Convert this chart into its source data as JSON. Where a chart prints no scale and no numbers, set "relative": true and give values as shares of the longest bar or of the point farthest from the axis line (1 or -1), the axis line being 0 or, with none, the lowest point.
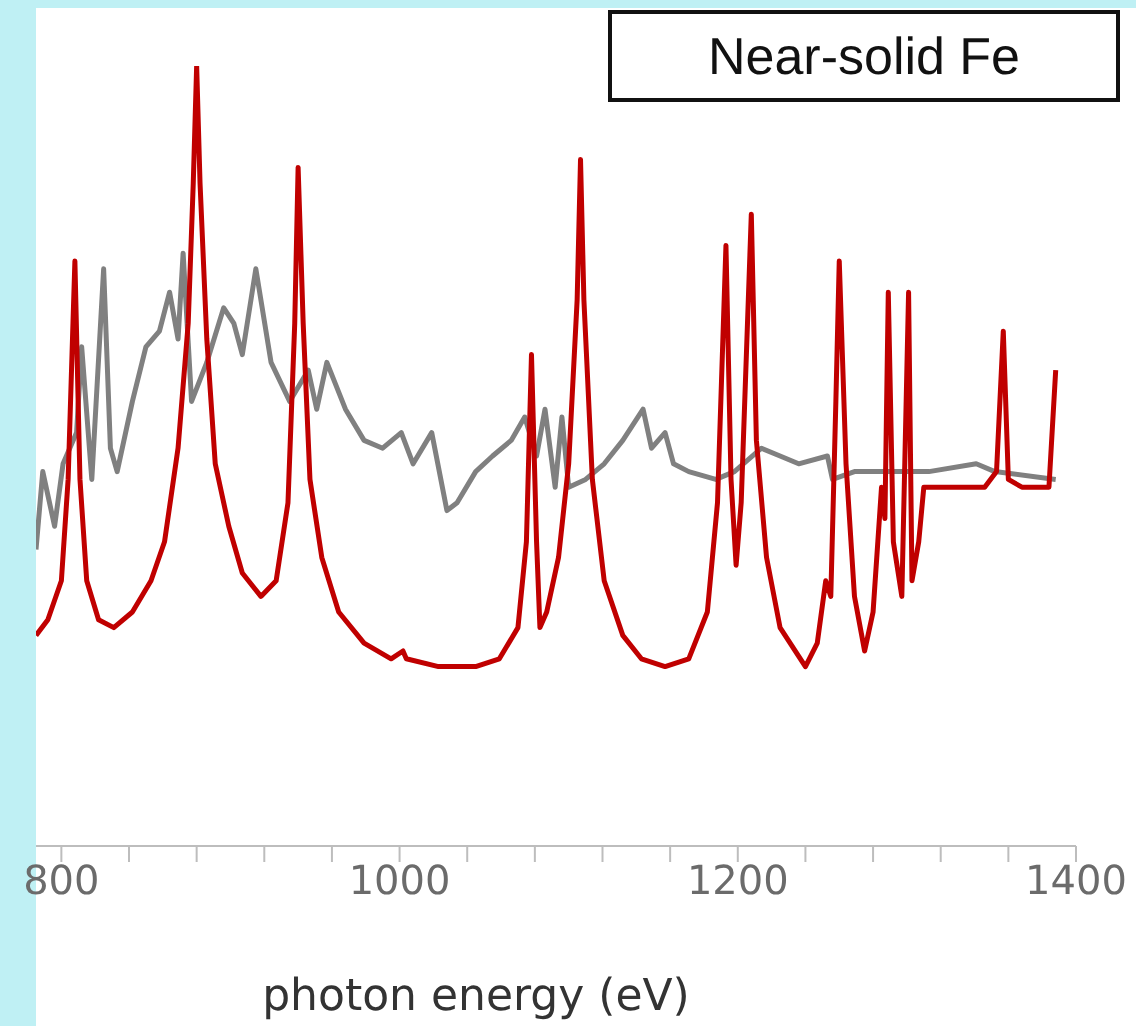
{
  "chart_data": {
    "type": "line",
    "relative": true,
    "xlabel": "photon energy (eV)",
    "annotations": [
      "Near-solid Fe"
    ],
    "xlim": [
      785,
      1400
    ],
    "xticks": [
      800,
      {
        "value": 840,
        "label": null
      },
      {
        "value": 880,
        "label": null
      },
      {
        "value": 920,
        "label": null
      },
      {
        "value": 960,
        "label": null
      },
      1000,
      {
        "value": 1040,
        "label": null
      },
      {
        "value": 1080,
        "label": null
      },
      {
        "value": 1120,
        "label": null
      },
      {
        "value": 1160,
        "label": null
      },
      1200,
      {
        "value": 1240,
        "label": null
      },
      {
        "value": 1280,
        "label": null
      },
      {
        "value": 1320,
        "label": null
      },
      {
        "value": 1360,
        "label": null
      },
      1400
    ],
    "grid": false,
    "legend": false,
    "marker": "none",
    "line_style": "solid",
    "series": [
      {
        "color": "#808080",
        "x": [
          785,
          789,
          796,
          801,
          809,
          812,
          818,
          825,
          829,
          833,
          842,
          850,
          858,
          864,
          869,
          872,
          877,
          886,
          896,
          902,
          907,
          915,
          924,
          935,
          946,
          951,
          957,
          968,
          979,
          990,
          1001,
          1008,
          1019,
          1028,
          1034,
          1045,
          1055,
          1066,
          1074,
          1081,
          1086,
          1092,
          1096,
          1100,
          1110,
          1121,
          1132,
          1144,
          1149,
          1157,
          1162,
          1171,
          1187,
          1198,
          1214,
          1225,
          1236,
          1253,
          1256,
          1269,
          1291,
          1313,
          1341,
          1352,
          1388
        ],
        "values": [
          0.38,
          0.48,
          0.41,
          0.49,
          0.53,
          0.64,
          0.47,
          0.74,
          0.51,
          0.48,
          0.57,
          0.64,
          0.66,
          0.71,
          0.65,
          0.76,
          0.57,
          0.62,
          0.69,
          0.67,
          0.63,
          0.74,
          0.62,
          0.57,
          0.61,
          0.56,
          0.62,
          0.56,
          0.52,
          0.51,
          0.53,
          0.49,
          0.53,
          0.43,
          0.44,
          0.48,
          0.5,
          0.52,
          0.55,
          0.5,
          0.56,
          0.46,
          0.55,
          0.46,
          0.47,
          0.49,
          0.52,
          0.56,
          0.51,
          0.53,
          0.49,
          0.48,
          0.47,
          0.48,
          0.51,
          0.5,
          0.49,
          0.5,
          0.47,
          0.48,
          0.48,
          0.48,
          0.49,
          0.48,
          0.47
        ]
      },
      {
        "color": "#c00000",
        "x": [
          785,
          792,
          800,
          804,
          808,
          811,
          815,
          822,
          831,
          842,
          853,
          861,
          869,
          875,
          878,
          880,
          882,
          886,
          891,
          899,
          907,
          918,
          927,
          934,
          938,
          940,
          943,
          947,
          954,
          964,
          979,
          995,
          1002,
          1004,
          1023,
          1045,
          1059,
          1070,
          1075,
          1078,
          1081,
          1083,
          1087,
          1094,
          1100,
          1105,
          1107,
          1109,
          1114,
          1121,
          1132,
          1143,
          1157,
          1171,
          1182,
          1188,
          1193,
          1196,
          1199,
          1202,
          1208,
          1211,
          1217,
          1225,
          1240,
          1247,
          1252,
          1255,
          1258,
          1260,
          1264,
          1269,
          1275,
          1280,
          1285,
          1287,
          1289,
          1292,
          1297,
          1301,
          1303,
          1307,
          1310,
          1324,
          1346,
          1353,
          1357,
          1360,
          1368,
          1384,
          1388
        ],
        "values": [
          0.27,
          0.29,
          0.34,
          0.47,
          0.75,
          0.47,
          0.34,
          0.29,
          0.28,
          0.3,
          0.34,
          0.39,
          0.51,
          0.67,
          0.85,
          1,
          0.85,
          0.65,
          0.49,
          0.41,
          0.35,
          0.32,
          0.34,
          0.44,
          0.67,
          0.87,
          0.67,
          0.47,
          0.37,
          0.3,
          0.26,
          0.24,
          0.25,
          0.24,
          0.23,
          0.23,
          0.24,
          0.28,
          0.39,
          0.63,
          0.39,
          0.28,
          0.3,
          0.37,
          0.49,
          0.7,
          0.88,
          0.7,
          0.47,
          0.34,
          0.27,
          0.24,
          0.23,
          0.24,
          0.3,
          0.44,
          0.77,
          0.47,
          0.36,
          0.44,
          0.81,
          0.52,
          0.37,
          0.28,
          0.23,
          0.26,
          0.34,
          0.32,
          0.57,
          0.75,
          0.49,
          0.32,
          0.25,
          0.3,
          0.46,
          0.42,
          0.71,
          0.39,
          0.32,
          0.71,
          0.34,
          0.39,
          0.46,
          0.46,
          0.46,
          0.48,
          0.66,
          0.47,
          0.46,
          0.46,
          0.61
        ]
      }
    ]
  }
}
